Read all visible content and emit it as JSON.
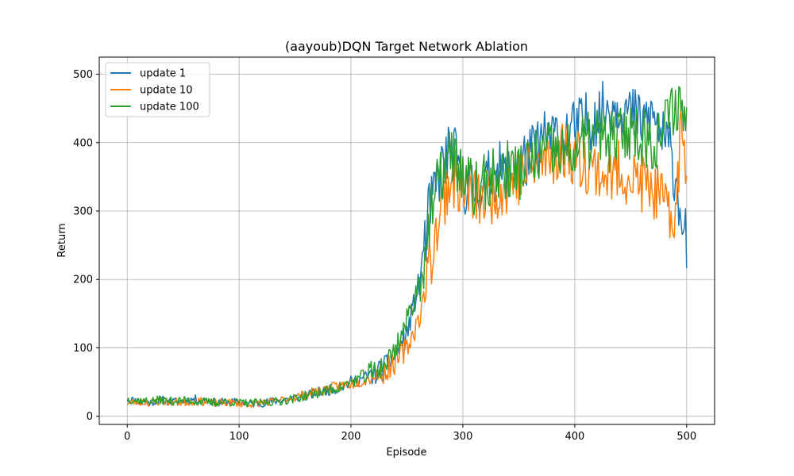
{
  "chart_data": {
    "type": "line",
    "title": "(aayoub)DQN Target Network Ablation",
    "xlabel": "Episode",
    "ylabel": "Return",
    "xlim": [
      -25,
      525
    ],
    "ylim": [
      -12,
      525
    ],
    "xticks": [
      0,
      100,
      200,
      300,
      400,
      500
    ],
    "yticks": [
      0,
      100,
      200,
      300,
      400,
      500
    ],
    "grid": true,
    "legend_position": "upper left",
    "series": [
      {
        "name": "update 1",
        "color": "#1f77b4"
      },
      {
        "name": "update 10",
        "color": "#ff7f0e"
      },
      {
        "name": "update 100",
        "color": "#2ca02c"
      }
    ],
    "approx_points": {
      "x": [
        0,
        10,
        20,
        30,
        40,
        50,
        60,
        70,
        80,
        90,
        100,
        110,
        120,
        130,
        140,
        150,
        160,
        170,
        180,
        190,
        200,
        210,
        220,
        230,
        240,
        250,
        260,
        265,
        270,
        275,
        280,
        285,
        290,
        295,
        300,
        310,
        320,
        330,
        340,
        350,
        360,
        370,
        380,
        390,
        400,
        410,
        420,
        430,
        440,
        450,
        460,
        470,
        480,
        485,
        490,
        495,
        500
      ],
      "update 1": [
        25,
        22,
        20,
        24,
        21,
        22,
        25,
        23,
        20,
        21,
        20,
        18,
        19,
        22,
        24,
        27,
        30,
        35,
        38,
        42,
        50,
        55,
        62,
        70,
        90,
        120,
        190,
        240,
        300,
        330,
        360,
        380,
        390,
        370,
        340,
        330,
        340,
        360,
        350,
        370,
        380,
        400,
        410,
        410,
        420,
        430,
        440,
        450,
        460,
        440,
        430,
        440,
        400,
        390,
        350,
        300,
        255
      ],
      "update 10": [
        20,
        21,
        20,
        22,
        21,
        20,
        22,
        21,
        19,
        20,
        19,
        18,
        20,
        21,
        24,
        28,
        32,
        36,
        40,
        44,
        48,
        52,
        58,
        65,
        80,
        100,
        140,
        170,
        220,
        260,
        300,
        330,
        350,
        340,
        330,
        320,
        320,
        330,
        340,
        350,
        360,
        370,
        380,
        390,
        380,
        370,
        360,
        350,
        360,
        350,
        340,
        330,
        310,
        280,
        300,
        420,
        360
      ],
      "update 100": [
        25,
        23,
        22,
        24,
        22,
        23,
        22,
        21,
        20,
        21,
        20,
        19,
        20,
        21,
        23,
        26,
        30,
        34,
        38,
        42,
        50,
        58,
        65,
        75,
        100,
        140,
        190,
        230,
        280,
        320,
        350,
        370,
        380,
        370,
        350,
        330,
        340,
        350,
        360,
        360,
        370,
        380,
        390,
        380,
        390,
        400,
        410,
        400,
        410,
        420,
        410,
        400,
        420,
        440,
        460,
        450,
        440
      ]
    }
  }
}
